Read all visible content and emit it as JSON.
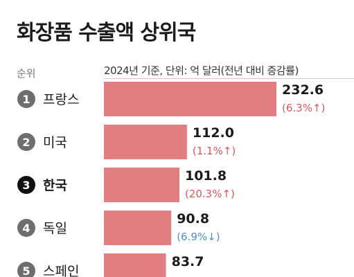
{
  "title": "화장품 수출액 상위국",
  "rank_header": "순위",
  "unit_note": "2024년 기준, 단위: 억 달러(전년 대비 증감률)",
  "colors": {
    "bar": "#e17f80",
    "increase": "#d9585e",
    "decrease": "#4a92c8",
    "rank_circle": "#6e6e6e",
    "rank_circle_highlight": "#111111"
  },
  "chart_data": {
    "type": "bar",
    "orientation": "horizontal",
    "title": "화장품 수출액 상위국",
    "xlabel": "",
    "ylabel": "",
    "unit": "억 달러",
    "categories": [
      "프랑스",
      "미국",
      "한국",
      "독일",
      "스페인"
    ],
    "ranks": [
      "1",
      "2",
      "3",
      "4",
      "5"
    ],
    "values": [
      232.6,
      112.0,
      101.8,
      90.8,
      83.7
    ],
    "value_labels": [
      "232.6",
      "112.0",
      "101.8",
      "90.8",
      "83.7"
    ],
    "change_labels": [
      "(6.3%↑)",
      "(1.1%↑)",
      "(20.3%↑)",
      "(6.9%↓)",
      ""
    ],
    "change_direction": [
      "up",
      "up",
      "up",
      "down",
      ""
    ],
    "highlight_index": 2,
    "xlim": [
      0,
      232.6
    ],
    "grid": false,
    "legend": "none"
  }
}
